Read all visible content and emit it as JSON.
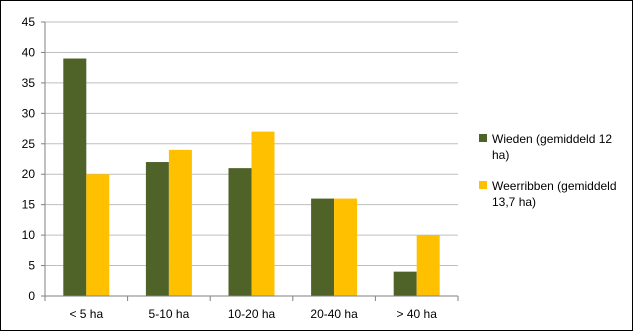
{
  "chart_data": {
    "type": "bar",
    "categories": [
      "< 5 ha",
      "5-10 ha",
      "10-20 ha",
      "20-40 ha",
      "> 40 ha"
    ],
    "series": [
      {
        "name": "Wieden (gemiddeld 12 ha)",
        "color": "#4f6228",
        "values": [
          39,
          22,
          21,
          16,
          4
        ]
      },
      {
        "name": "Weerribben (gemiddeld 13,7 ha)",
        "color": "#ffc000",
        "values": [
          20,
          24,
          27,
          16,
          10
        ]
      }
    ],
    "ylim": [
      0,
      45
    ],
    "yticks": [
      0,
      5,
      10,
      15,
      20,
      25,
      30,
      35,
      40,
      45
    ],
    "grid": true,
    "legend_position": "right",
    "title": "",
    "xlabel": "",
    "ylabel": ""
  }
}
